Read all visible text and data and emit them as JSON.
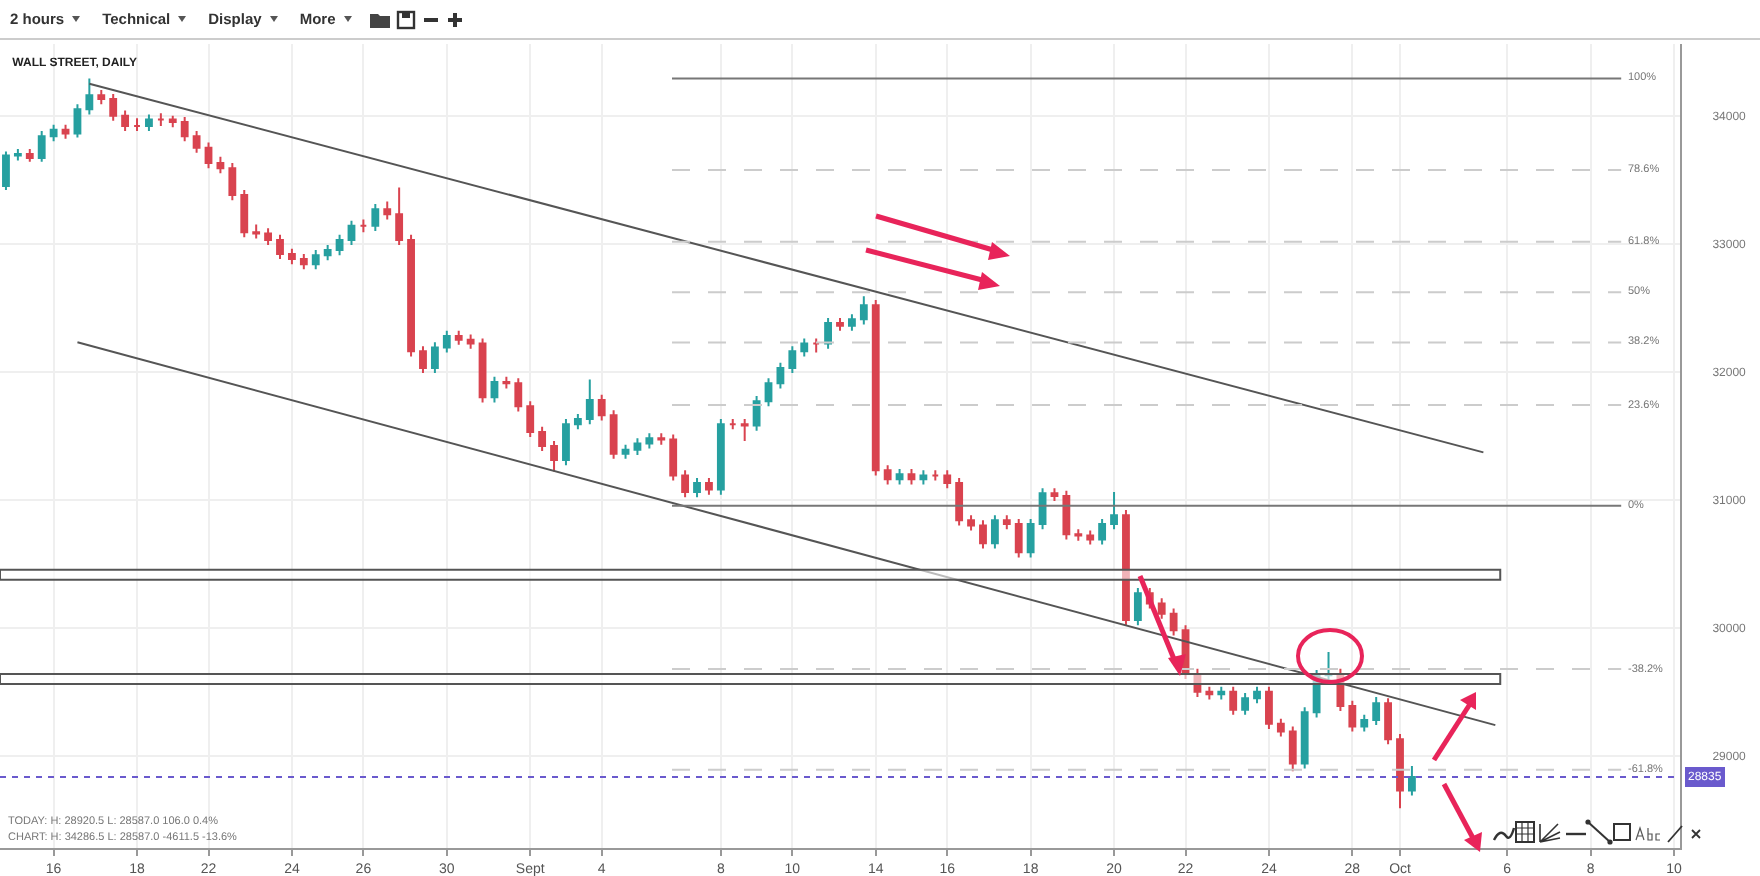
{
  "chart_data": {
    "type": "candlestick",
    "title": "WALL STREET, DAILY",
    "annotations": [
      "2 hours",
      "Technical",
      "Display",
      "More",
      "TODAY:  H: 28920.5  L: 28587.0  106.0  0.4%",
      "CHART:  H: 34286.5  L: 28587.0  -4611.5  -13.6%",
      "100%",
      "78.6%",
      "61.8%",
      "50%",
      "38.2%",
      "23.6%",
      "0%",
      "-38.2%",
      "-61.8%"
    ],
    "categories": [
      null,
      null,
      null,
      null,
      "16",
      null,
      null,
      null,
      null,
      null,
      null,
      "18",
      null,
      null,
      null,
      null,
      null,
      "22",
      null,
      null,
      null,
      null,
      null,
      null,
      "24",
      null,
      null,
      null,
      null,
      null,
      "26",
      null,
      null,
      null,
      null,
      null,
      null,
      "30",
      null,
      null,
      null,
      null,
      null,
      null,
      "Sept",
      null,
      null,
      null,
      null,
      null,
      "4",
      null,
      null,
      null,
      null,
      null,
      null,
      null,
      null,
      null,
      "8",
      null,
      null,
      null,
      null,
      null,
      "10",
      null,
      null,
      null,
      null,
      null,
      null,
      "14",
      null,
      null,
      null,
      null,
      null,
      "16",
      null,
      null,
      null,
      null,
      null,
      null,
      "18",
      null,
      null,
      null,
      null,
      null,
      null,
      "20",
      null,
      null,
      null,
      null,
      null,
      "22",
      null,
      null,
      null,
      null,
      null,
      null,
      "24",
      null,
      null,
      null,
      null,
      null,
      null,
      "28",
      null,
      null,
      null,
      "Oct",
      null,
      null,
      null,
      null,
      null,
      null,
      null,
      null,
      "6",
      null,
      null,
      null,
      null,
      null,
      null,
      "8",
      null,
      null,
      null,
      null,
      null,
      null,
      "10"
    ],
    "ylim": [
      28280,
      34560
    ],
    "yticks": [
      29000,
      30000,
      31000,
      32000,
      33000,
      34000
    ],
    "grid": true,
    "series": [
      {
        "type": "line",
        "color": "#555555",
        "values": [
          null,
          null,
          null,
          null,
          null,
          null,
          null,
          34250,
          null,
          null,
          null,
          null,
          null,
          null,
          null,
          null,
          null,
          null,
          null,
          null,
          null,
          null,
          null,
          null,
          null,
          null,
          null,
          null,
          null,
          null,
          null,
          null,
          null,
          null,
          null,
          null,
          null,
          null,
          null,
          null,
          null,
          null,
          null,
          null,
          null,
          null,
          null,
          null,
          null,
          null,
          null,
          null,
          null,
          null,
          null,
          null,
          null,
          null,
          null,
          null,
          null,
          null,
          null,
          null,
          null,
          null,
          null,
          null,
          null,
          null,
          null,
          null,
          null,
          null,
          null,
          null,
          null,
          null,
          null,
          null,
          null,
          null,
          null,
          null,
          null,
          null,
          null,
          null,
          null,
          null,
          null,
          null,
          null,
          null,
          null,
          null,
          null,
          null,
          null,
          null,
          null,
          null,
          null,
          null,
          null,
          null,
          null,
          null,
          null,
          null,
          null,
          null,
          null,
          null,
          null,
          null,
          null,
          null,
          null,
          null,
          null,
          null,
          null,
          null,
          31370,
          null,
          null,
          null,
          null,
          null,
          null,
          null,
          null,
          null,
          null,
          null,
          null,
          null,
          null,
          null,
          null
        ]
      },
      {
        "type": "line",
        "color": "#555555",
        "values": [
          null,
          null,
          null,
          null,
          null,
          null,
          32230,
          null,
          null,
          null,
          null,
          null,
          null,
          null,
          null,
          null,
          null,
          null,
          null,
          null,
          null,
          null,
          null,
          null,
          null,
          null,
          null,
          null,
          null,
          null,
          null,
          null,
          null,
          null,
          null,
          null,
          null,
          null,
          null,
          null,
          null,
          null,
          null,
          null,
          null,
          null,
          null,
          null,
          null,
          null,
          null,
          null,
          null,
          null,
          null,
          null,
          null,
          null,
          null,
          null,
          null,
          null,
          null,
          null,
          null,
          null,
          null,
          null,
          null,
          null,
          null,
          null,
          null,
          null,
          null,
          null,
          null,
          null,
          null,
          null,
          null,
          null,
          null,
          null,
          null,
          null,
          null,
          null,
          null,
          null,
          null,
          null,
          null,
          null,
          null,
          null,
          null,
          null,
          null,
          null,
          null,
          null,
          null,
          null,
          null,
          null,
          null,
          null,
          null,
          null,
          null,
          null,
          null,
          null,
          null,
          null,
          null,
          null,
          null,
          null,
          null,
          null,
          null,
          null,
          null,
          29240,
          null,
          null,
          null,
          null,
          null,
          null,
          null,
          null,
          null,
          null,
          null,
          null,
          null,
          null,
          null
        ]
      },
      {
        "colors": [
          "#26a0a0",
          "#26a0a0",
          "#d9434f",
          "#26a0a0",
          "#26a0a0",
          "#d9434f",
          "#26a0a0",
          "#26a0a0",
          "#d9434f",
          "#d9434f",
          "#d9434f",
          "#d9434f",
          "#26a0a0",
          "#d9434f",
          "#d9434f",
          "#d9434f",
          "#d9434f",
          "#d9434f",
          "#d9434f",
          "#d9434f",
          "#d9434f",
          "#d9434f",
          "#d9434f",
          "#d9434f",
          "#d9434f",
          "#d9434f",
          "#26a0a0",
          "#26a0a0",
          "#26a0a0",
          "#26a0a0",
          "#d9434f",
          "#26a0a0",
          "#d9434f",
          "#d9434f",
          "#d9434f",
          "#d9434f",
          "#26a0a0",
          "#26a0a0",
          "#d9434f",
          "#d9434f",
          "#d9434f",
          "#26a0a0",
          "#d9434f",
          "#d9434f",
          "#d9434f",
          "#d9434f",
          "#d9434f",
          "#26a0a0",
          "#26a0a0",
          "#26a0a0",
          "#d9434f",
          "#d9434f",
          "#26a0a0",
          "#26a0a0",
          "#26a0a0",
          "#d9434f",
          "#d9434f",
          "#d9434f",
          "#26a0a0",
          "#d9434f",
          "#26a0a0",
          "#d9434f",
          "#d9434f",
          "#26a0a0",
          "#26a0a0",
          "#26a0a0",
          "#26a0a0",
          "#26a0a0",
          "#d9434f",
          "#26a0a0",
          "#d9434f",
          "#26a0a0",
          "#26a0a0",
          "#d9434f",
          "#d9434f",
          "#26a0a0",
          "#d9434f",
          "#26a0a0",
          "#d9434f",
          "#d9434f",
          "#d9434f",
          "#d9434f",
          "#d9434f",
          "#26a0a0",
          "#d9434f",
          "#d9434f",
          "#26a0a0",
          "#26a0a0",
          "#d9434f",
          "#d9434f",
          "#d9434f",
          "#d9434f",
          "#26a0a0",
          "#26a0a0",
          "#d9434f",
          "#26a0a0",
          "#d9434f",
          "#d9434f",
          "#d9434f",
          "#d9434f",
          "#d9434f",
          "#d9434f",
          "#26a0a0",
          "#d9434f",
          "#26a0a0",
          "#26a0a0",
          "#d9434f",
          "#d9434f",
          "#d9434f",
          "#26a0a0",
          "#26a0a0",
          "#26a0a0",
          "#d9434f",
          "#d9434f",
          "#26a0a0",
          "#26a0a0",
          "#d9434f",
          "#d9434f",
          "#26a0a0",
          null,
          null,
          null,
          null,
          null,
          null,
          null,
          null,
          null,
          null,
          null,
          null,
          null,
          null,
          null,
          null,
          null,
          null,
          null,
          null,
          null,
          null
        ],
        "ohlc": [
          [
            33450,
            33720,
            33420,
            33690
          ],
          [
            33690,
            33740,
            33650,
            33700
          ],
          [
            33700,
            33740,
            33640,
            33670
          ],
          [
            33670,
            33880,
            33640,
            33840
          ],
          [
            33840,
            33930,
            33800,
            33890
          ],
          [
            33890,
            33930,
            33820,
            33860
          ],
          [
            33860,
            34090,
            33830,
            34050
          ],
          [
            34050,
            34290,
            34010,
            34160
          ],
          [
            34160,
            34200,
            34090,
            34130
          ],
          [
            34130,
            34170,
            33960,
            34000
          ],
          [
            34000,
            34040,
            33880,
            33920
          ],
          [
            33920,
            33980,
            33880,
            33920
          ],
          [
            33920,
            34010,
            33880,
            33970
          ],
          [
            33970,
            34020,
            33920,
            33970
          ],
          [
            33970,
            34000,
            33910,
            33950
          ],
          [
            33950,
            33990,
            33800,
            33840
          ],
          [
            33840,
            33880,
            33710,
            33750
          ],
          [
            33750,
            33790,
            33590,
            33630
          ],
          [
            33630,
            33680,
            33550,
            33590
          ],
          [
            33590,
            33630,
            33340,
            33380
          ],
          [
            33380,
            33420,
            33050,
            33090
          ],
          [
            33090,
            33150,
            33040,
            33080
          ],
          [
            33080,
            33120,
            32990,
            33030
          ],
          [
            33030,
            33070,
            32880,
            32920
          ],
          [
            32920,
            32960,
            32840,
            32880
          ],
          [
            32880,
            32920,
            32800,
            32840
          ],
          [
            32840,
            32950,
            32800,
            32910
          ],
          [
            32910,
            32990,
            32870,
            32950
          ],
          [
            32950,
            33070,
            32910,
            33030
          ],
          [
            33030,
            33180,
            32990,
            33140
          ],
          [
            33140,
            33190,
            33090,
            33140
          ],
          [
            33140,
            33310,
            33100,
            33270
          ],
          [
            33270,
            33330,
            33190,
            33230
          ],
          [
            33230,
            33440,
            32990,
            33030
          ],
          [
            33030,
            33070,
            32120,
            32160
          ],
          [
            32160,
            32200,
            31990,
            32030
          ],
          [
            32030,
            32230,
            31990,
            32190
          ],
          [
            32190,
            32320,
            32150,
            32280
          ],
          [
            32280,
            32320,
            32210,
            32250
          ],
          [
            32250,
            32290,
            32180,
            32220
          ],
          [
            32220,
            32260,
            31760,
            31800
          ],
          [
            31800,
            31960,
            31760,
            31920
          ],
          [
            31920,
            31960,
            31870,
            31910
          ],
          [
            31910,
            31950,
            31690,
            31730
          ],
          [
            31730,
            31770,
            31490,
            31530
          ],
          [
            31530,
            31570,
            31380,
            31420
          ],
          [
            31420,
            31460,
            31220,
            31310
          ],
          [
            31310,
            31630,
            31270,
            31590
          ],
          [
            31590,
            31670,
            31550,
            31630
          ],
          [
            31630,
            31940,
            31590,
            31780
          ],
          [
            31780,
            31820,
            31620,
            31660
          ],
          [
            31660,
            31700,
            31320,
            31360
          ],
          [
            31360,
            31430,
            31320,
            31390
          ],
          [
            31390,
            31480,
            31350,
            31440
          ],
          [
            31440,
            31520,
            31400,
            31480
          ],
          [
            31480,
            31520,
            31430,
            31470
          ],
          [
            31470,
            31510,
            31150,
            31190
          ],
          [
            31190,
            31230,
            31020,
            31060
          ],
          [
            31060,
            31170,
            31020,
            31130
          ],
          [
            31130,
            31170,
            31040,
            31080
          ],
          [
            31080,
            31630,
            31040,
            31590
          ],
          [
            31590,
            31630,
            31550,
            31590
          ],
          [
            31590,
            31630,
            31460,
            31580
          ],
          [
            31580,
            31810,
            31540,
            31770
          ],
          [
            31770,
            31950,
            31730,
            31910
          ],
          [
            31910,
            32070,
            31870,
            32030
          ],
          [
            32030,
            32200,
            31990,
            32160
          ],
          [
            32160,
            32260,
            32120,
            32220
          ],
          [
            32220,
            32260,
            32150,
            32220
          ],
          [
            32220,
            32420,
            32180,
            32380
          ],
          [
            32380,
            32420,
            32320,
            32360
          ],
          [
            32360,
            32450,
            32320,
            32410
          ],
          [
            32410,
            32590,
            32370,
            32520
          ],
          [
            32520,
            32560,
            31190,
            31230
          ],
          [
            31230,
            31270,
            31120,
            31160
          ],
          [
            31160,
            31240,
            31120,
            31200
          ],
          [
            31200,
            31240,
            31120,
            31160
          ],
          [
            31160,
            31230,
            31120,
            31190
          ],
          [
            31190,
            31230,
            31150,
            31190
          ],
          [
            31190,
            31230,
            31090,
            31130
          ],
          [
            31130,
            31170,
            30800,
            30840
          ],
          [
            30840,
            30880,
            30760,
            30800
          ],
          [
            30800,
            30840,
            30620,
            30660
          ],
          [
            30660,
            30880,
            30620,
            30840
          ],
          [
            30840,
            30880,
            30770,
            30810
          ],
          [
            30810,
            30850,
            30550,
            30590
          ],
          [
            30590,
            30850,
            30550,
            30810
          ],
          [
            30810,
            31090,
            30770,
            31050
          ],
          [
            31050,
            31090,
            30990,
            31030
          ],
          [
            31030,
            31070,
            30690,
            30730
          ],
          [
            30730,
            30770,
            30680,
            30720
          ],
          [
            30720,
            30760,
            30650,
            30690
          ],
          [
            30690,
            30850,
            30650,
            30810
          ],
          [
            30810,
            31060,
            30770,
            30880
          ],
          [
            30880,
            30920,
            30020,
            30060
          ],
          [
            30060,
            30310,
            30020,
            30270
          ],
          [
            30270,
            30310,
            30150,
            30190
          ],
          [
            30190,
            30230,
            30070,
            30110
          ],
          [
            30110,
            30150,
            29940,
            29980
          ],
          [
            29980,
            30020,
            29600,
            29640
          ],
          [
            29640,
            29680,
            29460,
            29500
          ],
          [
            29500,
            29540,
            29440,
            29480
          ],
          [
            29480,
            29540,
            29440,
            29500
          ],
          [
            29500,
            29540,
            29320,
            29360
          ],
          [
            29360,
            29490,
            29320,
            29450
          ],
          [
            29450,
            29540,
            29410,
            29500
          ],
          [
            29500,
            29540,
            29210,
            29250
          ],
          [
            29250,
            29290,
            29150,
            29190
          ],
          [
            29190,
            29230,
            28880,
            28940
          ],
          [
            28940,
            29380,
            28900,
            29340
          ],
          [
            29340,
            29670,
            29300,
            29630
          ],
          [
            29630,
            29810,
            29590,
            29640
          ],
          [
            29640,
            29680,
            29350,
            29390
          ],
          [
            29390,
            29430,
            29190,
            29230
          ],
          [
            29230,
            29320,
            29190,
            29280
          ],
          [
            29280,
            29460,
            29240,
            29410
          ],
          [
            29410,
            29450,
            29090,
            29130
          ],
          [
            29130,
            29170,
            28590,
            28730
          ],
          [
            28730,
            28920,
            28690,
            28835
          ],
          null,
          null,
          null,
          null,
          null,
          null,
          null,
          null,
          null,
          null,
          null,
          null,
          null,
          null,
          null,
          null,
          null,
          null,
          null,
          null,
          null,
          null
        ]
      }
    ],
    "ref_lines": [
      {
        "axis": "y",
        "value": 34290,
        "color": "#777777",
        "line_style": "solid"
      },
      {
        "axis": "y",
        "value": 33576,
        "color": "#cccccc",
        "line_style": "dashed"
      },
      {
        "axis": "y",
        "value": 33015,
        "color": "#cccccc",
        "line_style": "dashed"
      },
      {
        "axis": "y",
        "value": 32620,
        "color": "#cccccc",
        "line_style": "dashed"
      },
      {
        "axis": "y",
        "value": 32228,
        "color": "#cccccc",
        "line_style": "dashed"
      },
      {
        "axis": "y",
        "value": 31740,
        "color": "#cccccc",
        "line_style": "dashed"
      },
      {
        "axis": "y",
        "value": 30953,
        "color": "#777777",
        "line_style": "solid"
      },
      {
        "axis": "y",
        "value": 29678,
        "color": "#cccccc",
        "line_style": "dashed"
      },
      {
        "axis": "y",
        "value": 28891,
        "color": "#cccccc",
        "line_style": "dashed"
      },
      {
        "axis": "y",
        "value": 28835,
        "label": "28835",
        "color": "#6a5acd",
        "line_style": "dotted"
      }
    ],
    "bands": [
      {
        "axis": "y",
        "from": 30375,
        "to": 30453,
        "color": "#555555"
      },
      {
        "axis": "y",
        "from": 29562,
        "to": 29640,
        "color": "#555555"
      }
    ]
  }
}
